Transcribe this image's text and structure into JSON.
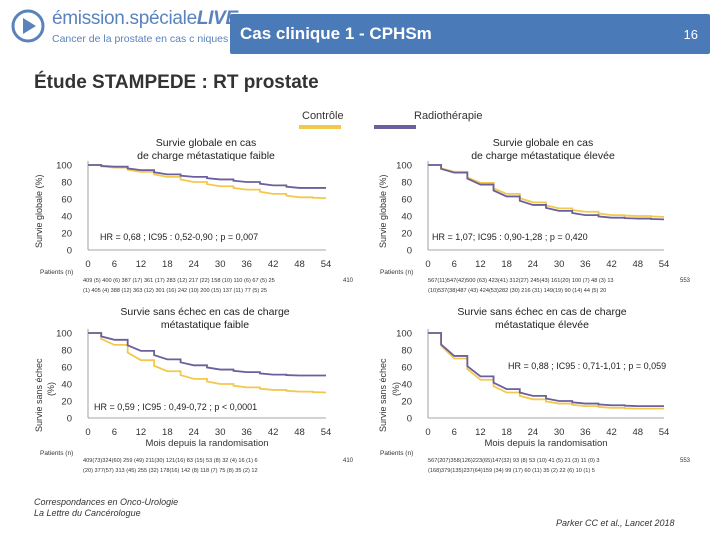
{
  "header": {
    "logo_title_main": "émission.spéciale",
    "logo_title_live": "LIVE",
    "logo_subtitle": "Cancer de la prostate en cas c niques",
    "slide_title": "Cas clinique 1 - CPHSm",
    "page_number": "16"
  },
  "study_title": "Étude STAMPEDE : RT prostate",
  "legend": {
    "control": "Contrôle",
    "radiotherapy": "Radiothérapie",
    "control_color": "#f2c94c",
    "rt_color": "#6b5f9e"
  },
  "y_axis_label_os": "Survie globale (%)",
  "y_axis_label_fs_line1": "Survie sans échec",
  "y_axis_label_fs_line2": "(%)",
  "patients_label": "Patients (n)",
  "footer": {
    "left_line1": "Correspondances en Onco-Urologie",
    "left_line2": "La Lettre du Cancérologue",
    "right": "Parker CC et al., Lancet 2018"
  },
  "chart_data": [
    {
      "type": "line",
      "title_line1": "Survie globale en cas",
      "title_line2": "de charge métastatique faible",
      "xlabel": "",
      "ylabel": "Survie globale (%)",
      "xlim": [
        0,
        54
      ],
      "ylim": [
        0,
        100
      ],
      "x_ticks": [
        0,
        6,
        12,
        18,
        24,
        30,
        36,
        42,
        48,
        54
      ],
      "y_ticks": [
        0,
        20,
        40,
        60,
        80,
        100
      ],
      "annotation": "HR = 0,68 ; IC95 : 0,52-0,90 ; p = 0,007",
      "series": [
        {
          "name": "Contrôle",
          "x": [
            0,
            6,
            12,
            18,
            24,
            30,
            36,
            42,
            48,
            54
          ],
          "y": [
            100,
            97,
            92,
            86,
            80,
            75,
            71,
            66,
            62,
            61
          ]
        },
        {
          "name": "Radiothérapie",
          "x": [
            0,
            6,
            12,
            18,
            24,
            30,
            36,
            42,
            48,
            54
          ],
          "y": [
            100,
            98,
            94,
            89,
            86,
            83,
            80,
            76,
            73,
            73
          ]
        }
      ],
      "patients_row1": "409 (5) 400 (6) 387 (17) 361 (17) 283 (12) 217 (22) 158 (10) 110 (6) 67 (5) 25",
      "patients_row2": "(1) 405 (4) 388 (12) 363 (12) 301 (16) 242 (10) 200 (15) 137 (11) 77 (5) 25",
      "patients_right": "410"
    },
    {
      "type": "line",
      "title_line1": "Survie globale en cas",
      "title_line2": "de charge métastatique élevée",
      "xlabel": "",
      "ylabel": "Survie globale (%)",
      "xlim": [
        0,
        54
      ],
      "ylim": [
        0,
        100
      ],
      "x_ticks": [
        0,
        6,
        12,
        18,
        24,
        30,
        36,
        42,
        48,
        54
      ],
      "y_ticks": [
        0,
        20,
        40,
        60,
        80,
        100
      ],
      "annotation": "HR = 1,07; IC95 : 0,90-1,28 ; p = 0,420",
      "series": [
        {
          "name": "Contrôle",
          "x": [
            0,
            6,
            12,
            18,
            24,
            30,
            36,
            42,
            48,
            54
          ],
          "y": [
            100,
            92,
            79,
            66,
            56,
            49,
            45,
            41,
            40,
            39
          ]
        },
        {
          "name": "Radiothérapie",
          "x": [
            0,
            6,
            12,
            18,
            24,
            30,
            36,
            42,
            48,
            54
          ],
          "y": [
            100,
            91,
            77,
            63,
            53,
            46,
            41,
            38,
            37,
            36
          ]
        }
      ],
      "patients_row1": "567(11)547(42)500 (63) 423(41) 312(27) 245(43) 161(20) 100 (7) 48 (3) 13",
      "patients_row2": "(10)537(38)487 (43) 424(53)282 (30) 216 (31) 149(19) 90 (14) 44 (5) 20",
      "patients_right": "553"
    },
    {
      "type": "line",
      "title_line1": "Survie sans échec en cas de charge",
      "title_line2": "métastatique faible",
      "xlabel": "Mois depuis la randomisation",
      "ylabel": "Survie sans échec (%)",
      "xlim": [
        0,
        54
      ],
      "ylim": [
        0,
        100
      ],
      "x_ticks": [
        0,
        6,
        12,
        18,
        24,
        30,
        36,
        42,
        48,
        54
      ],
      "y_ticks": [
        0,
        20,
        40,
        60,
        80,
        100
      ],
      "annotation": "HR = 0,59 ; IC95 : 0,49-0,72 ; p < 0,0001",
      "series": [
        {
          "name": "Contrôle",
          "x": [
            0,
            6,
            12,
            18,
            24,
            30,
            36,
            42,
            48,
            54
          ],
          "y": [
            100,
            86,
            68,
            55,
            46,
            40,
            36,
            33,
            31,
            30
          ]
        },
        {
          "name": "Radiothérapie",
          "x": [
            0,
            6,
            12,
            18,
            24,
            30,
            36,
            42,
            48,
            54
          ],
          "y": [
            100,
            92,
            79,
            69,
            62,
            57,
            54,
            51,
            50,
            50
          ]
        }
      ],
      "patients_row1": "409(73)324(60) 259 (49) 211(30) 121(16) 83 (15) 53 (8) 32 (4) 16 (1) 6",
      "patients_row2": "(20) 377(57) 313 (45) 255 (32) 178(16) 142 (8) 118 (7) 75 (8) 35 (2) 12",
      "patients_right": "410"
    },
    {
      "type": "line",
      "title_line1": "Survie sans échec en cas de charge",
      "title_line2": "métastatique élevée",
      "xlabel": "Mois depuis la randomisation",
      "ylabel": "Survie sans échec (%)",
      "xlim": [
        0,
        54
      ],
      "ylim": [
        0,
        100
      ],
      "x_ticks": [
        0,
        6,
        12,
        18,
        24,
        30,
        36,
        42,
        48,
        54
      ],
      "y_ticks": [
        0,
        20,
        40,
        60,
        80,
        100
      ],
      "annotation": "HR = 0,88 ; IC95 : 0,71-1,01 ; p = 0,059",
      "series": [
        {
          "name": "Contrôle",
          "x": [
            0,
            6,
            12,
            18,
            24,
            30,
            36,
            42,
            48,
            54
          ],
          "y": [
            100,
            70,
            45,
            30,
            22,
            17,
            14,
            12,
            11,
            11
          ]
        },
        {
          "name": "Radiothérapie",
          "x": [
            0,
            6,
            12,
            18,
            24,
            30,
            36,
            42,
            48,
            54
          ],
          "y": [
            100,
            73,
            49,
            34,
            26,
            20,
            17,
            15,
            14,
            14
          ]
        }
      ],
      "patients_row1": "567(207)358(126)223(65)147(32) 93 (8) 53 (10) 41 (5) 21 (3) 11 (0) 3",
      "patients_row2": "(168)379(135)237(64)159 (34) 99 (17) 60 (11) 35 (2) 22 (6) 10 (1) 5",
      "patients_right": "553"
    }
  ]
}
